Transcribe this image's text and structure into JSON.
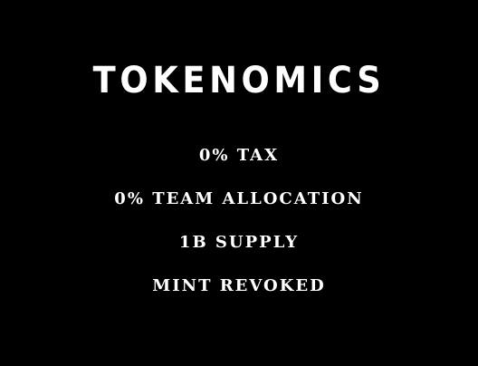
{
  "section": {
    "title": "TOKENOMICS",
    "items": [
      "0% TAX",
      "0% TEAM ALLOCATION",
      "1B SUPPLY",
      "MINT REVOKED"
    ]
  },
  "colors": {
    "background": "#000000",
    "text": "#ffffff"
  }
}
